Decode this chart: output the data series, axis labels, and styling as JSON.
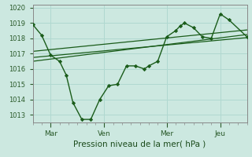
{
  "background_color": "#cce8e0",
  "grid_color": "#b0d8d0",
  "line_color": "#1a5c1a",
  "marker_color": "#1a5c1a",
  "xlabel": "Pression niveau de la mer( hPa )",
  "xlim": [
    0,
    96
  ],
  "ylim": [
    1012.5,
    1020.2
  ],
  "yticks": [
    1013,
    1014,
    1015,
    1016,
    1017,
    1018,
    1019,
    1020
  ],
  "xtick_positions": [
    8,
    32,
    60,
    84
  ],
  "xtick_labels": [
    "Mar",
    "Ven",
    "Mer",
    "Jeu"
  ],
  "series1_x": [
    0,
    4,
    8,
    12,
    15,
    18,
    22,
    26,
    30,
    34,
    38,
    42,
    46,
    50,
    52,
    56,
    60,
    64,
    66,
    68,
    72,
    76,
    80,
    84,
    88,
    96
  ],
  "values1": [
    1018.9,
    1018.2,
    1016.9,
    1016.5,
    1015.6,
    1013.8,
    1012.7,
    1012.7,
    1014.0,
    1014.9,
    1015.0,
    1016.2,
    1016.2,
    1016.0,
    1016.2,
    1016.5,
    1018.1,
    1018.5,
    1018.8,
    1019.0,
    1018.7,
    1018.1,
    1018.0,
    1019.6,
    1019.2,
    1018.1
  ],
  "trend_line": [
    [
      0,
      96
    ],
    [
      1016.75,
      1018.05
    ]
  ],
  "trend_line2": [
    [
      0,
      96
    ],
    [
      1017.15,
      1018.55
    ]
  ],
  "trend_line3": [
    [
      0,
      96
    ],
    [
      1016.5,
      1018.25
    ]
  ]
}
